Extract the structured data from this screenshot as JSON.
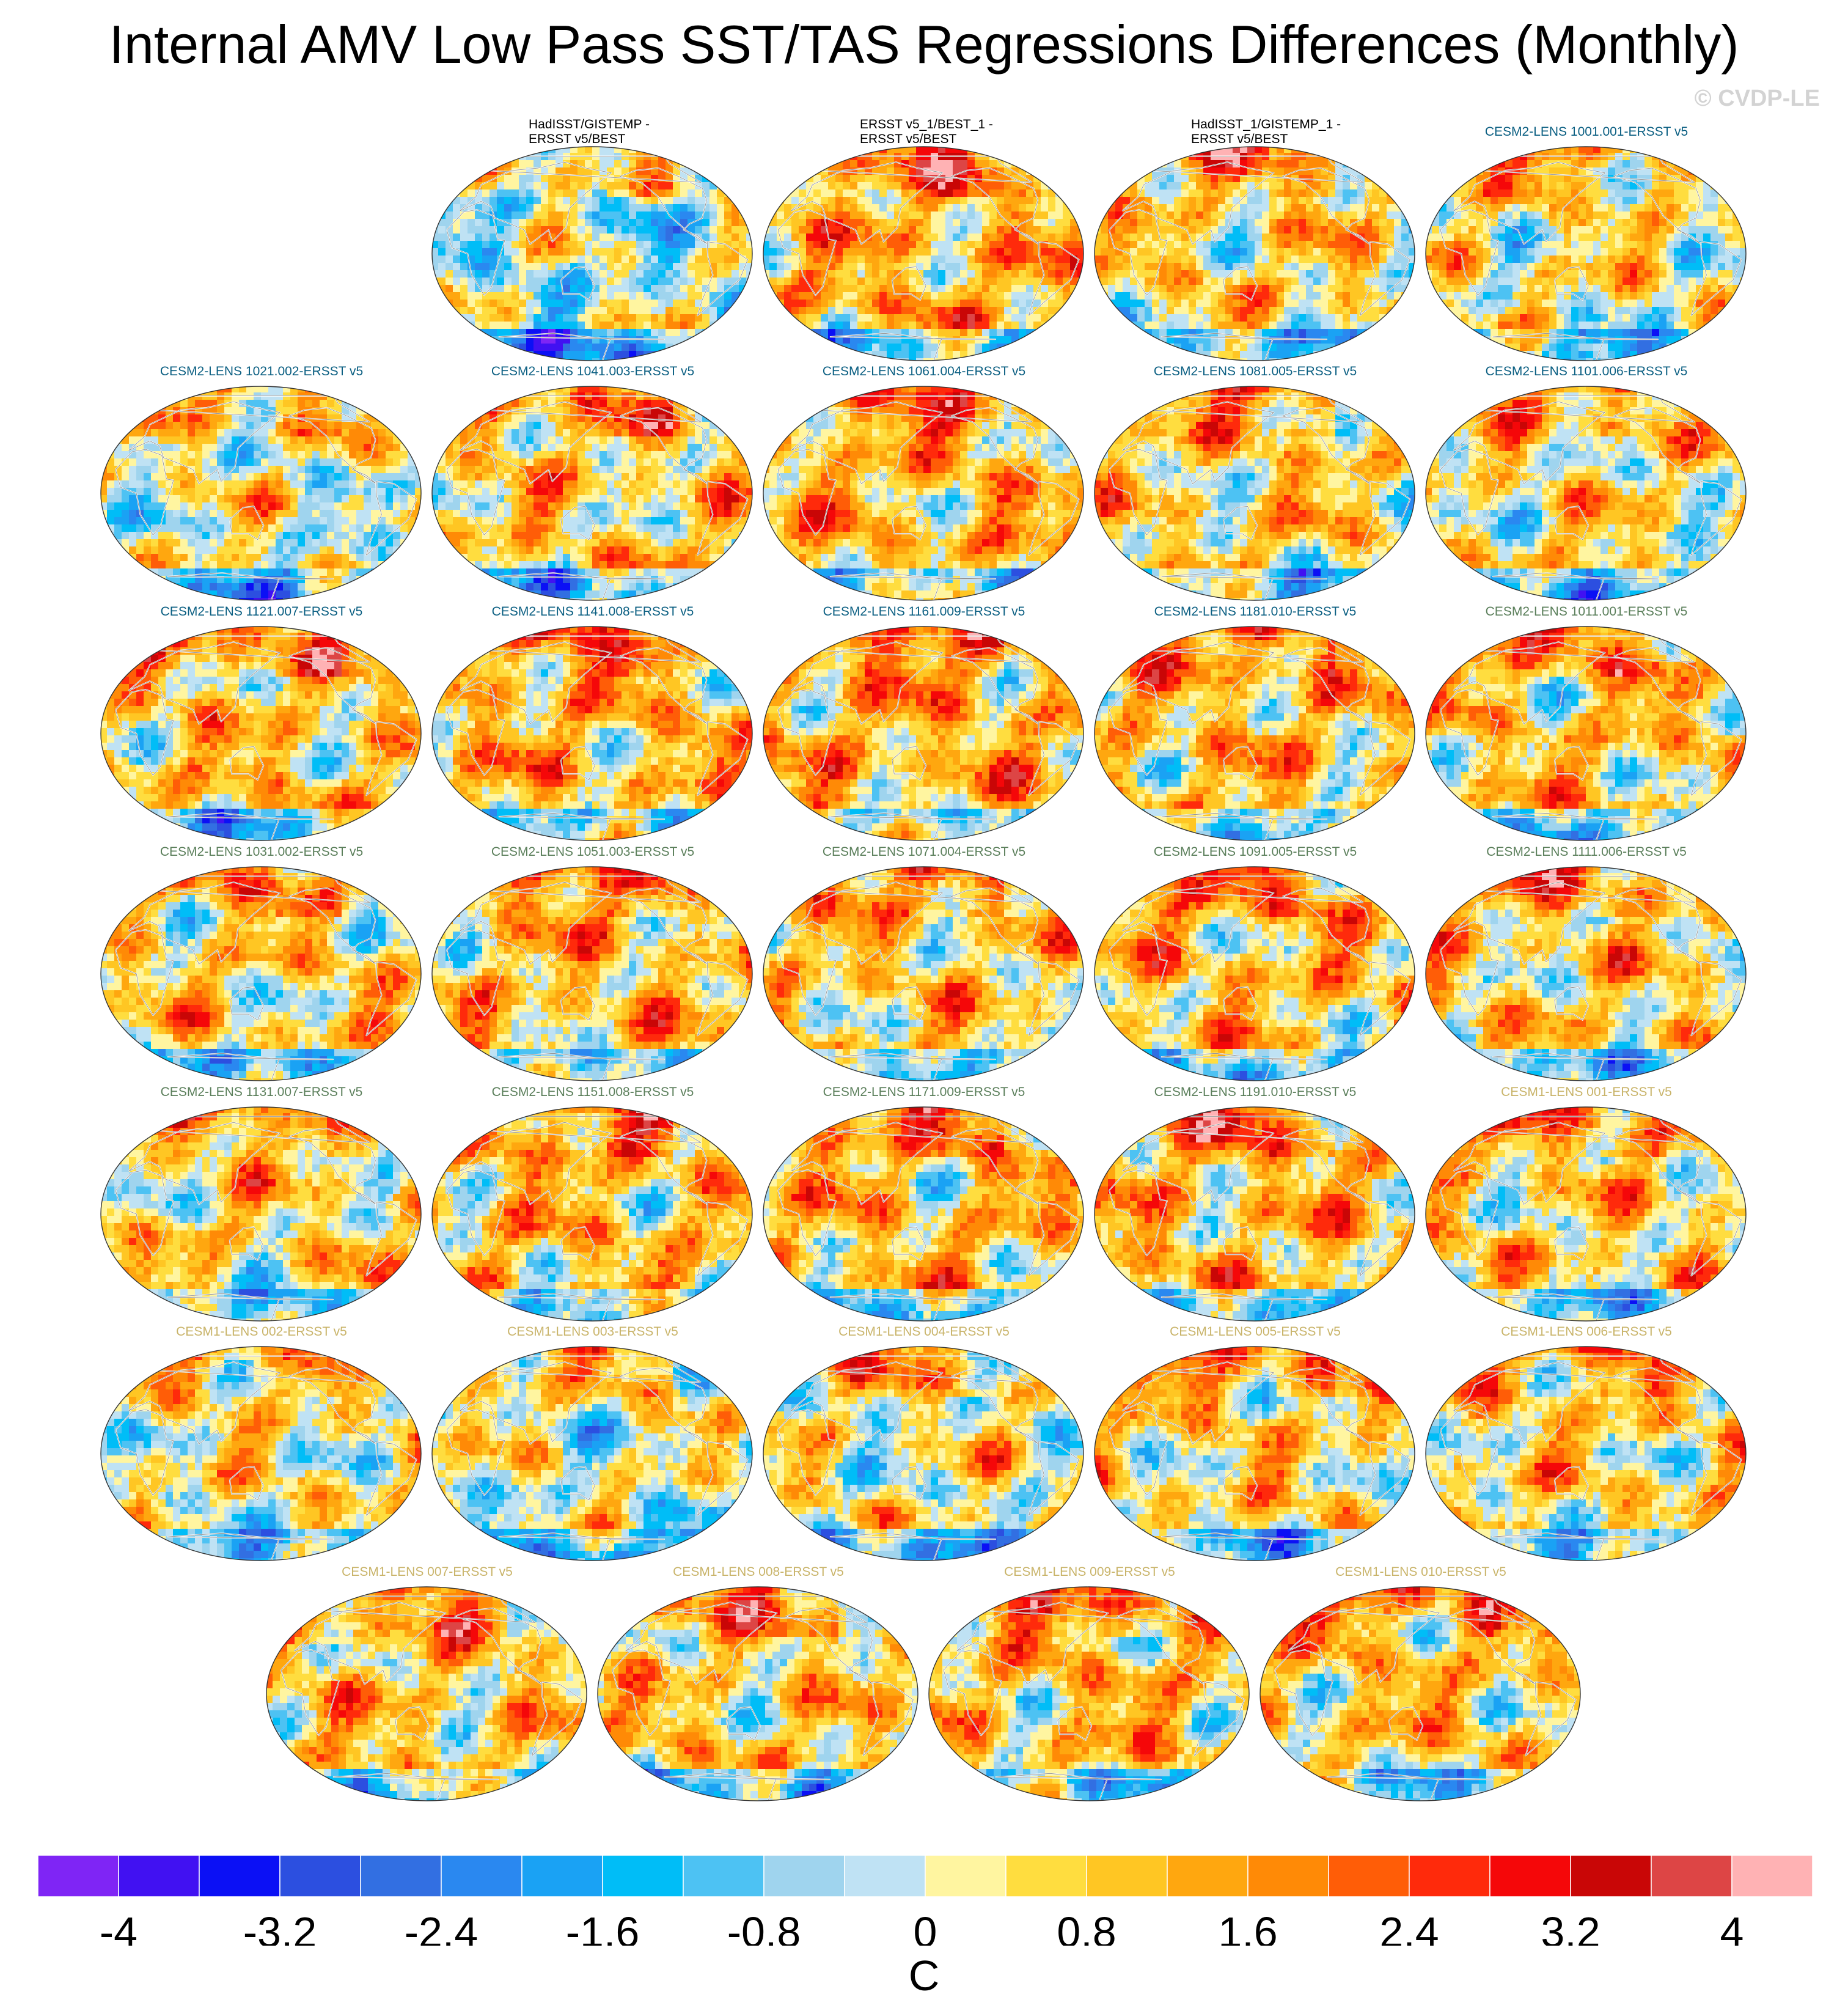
{
  "title": "Internal AMV Low Pass SST/TAS Regressions Differences (Monthly)",
  "copyright": "© CVDP-LE",
  "colors": {
    "obs_title": "#000000",
    "cesm2_a_title": "#0b5f82",
    "cesm2_b_title": "#5b7f5b",
    "cesm1_title": "#c9b46a"
  },
  "chart_data": {
    "type": "heatmap",
    "projection": "robinson-like global maps",
    "colorbar": {
      "unit": "C",
      "min": -4.4,
      "max": 4.4,
      "step": 0.4,
      "tick_labels": [
        "-4",
        "-3.2",
        "-2.4",
        "-1.6",
        "-0.8",
        "0",
        "0.8",
        "1.6",
        "2.4",
        "3.2",
        "4"
      ],
      "tick_values": [
        -4,
        -3.2,
        -2.4,
        -1.6,
        -0.8,
        0,
        0.8,
        1.6,
        2.4,
        3.2,
        4
      ],
      "colors": [
        "#7f25f5",
        "#4111f2",
        "#0b10f5",
        "#2c4fe0",
        "#326fe2",
        "#2a88f0",
        "#1aa2f4",
        "#00bdf7",
        "#4dc2f3",
        "#9fd4ee",
        "#bfe2f4",
        "#fff5a0",
        "#ffdd3f",
        "#ffc623",
        "#ffa70f",
        "#ff8a06",
        "#ff5d07",
        "#ff2a0b",
        "#f50709",
        "#c90606",
        "#dd4545",
        "#ffb2b4"
      ]
    },
    "panels": [
      {
        "title": "HadISST/GISTEMP -\nERSST v5/BEST",
        "group": "obs",
        "bias": -0.25,
        "seed": 11
      },
      {
        "title": "ERSST v5_1/BEST_1 -\nERSST v5/BEST",
        "group": "obs",
        "bias": 1.1,
        "seed": 12
      },
      {
        "title": "HadISST_1/GISTEMP_1 -\nERSST v5/BEST",
        "group": "obs",
        "bias": 0.6,
        "seed": 13
      },
      {
        "title": "CESM2-LENS 1001.001-ERSST v5",
        "group": "cesm2_a",
        "bias": 0.4,
        "seed": 14
      },
      {
        "title": "CESM2-LENS 1021.002-ERSST v5",
        "group": "cesm2_a",
        "bias": 0.2,
        "seed": 15
      },
      {
        "title": "CESM2-LENS 1041.003-ERSST v5",
        "group": "cesm2_a",
        "bias": 0.7,
        "seed": 16
      },
      {
        "title": "CESM2-LENS 1061.004-ERSST v5",
        "group": "cesm2_a",
        "bias": 1.0,
        "seed": 17
      },
      {
        "title": "CESM2-LENS 1081.005-ERSST v5",
        "group": "cesm2_a",
        "bias": 0.6,
        "seed": 18
      },
      {
        "title": "CESM2-LENS 1101.006-ERSST v5",
        "group": "cesm2_a",
        "bias": 0.5,
        "seed": 19
      },
      {
        "title": "CESM2-LENS 1121.007-ERSST v5",
        "group": "cesm2_a",
        "bias": 0.8,
        "seed": 20
      },
      {
        "title": "CESM2-LENS 1141.008-ERSST v5",
        "group": "cesm2_a",
        "bias": 1.0,
        "seed": 21
      },
      {
        "title": "CESM2-LENS 1161.009-ERSST v5",
        "group": "cesm2_a",
        "bias": 1.1,
        "seed": 22
      },
      {
        "title": "CESM2-LENS 1181.010-ERSST v5",
        "group": "cesm2_a",
        "bias": 0.9,
        "seed": 23
      },
      {
        "title": "CESM2-LENS 1011.001-ERSST v5",
        "group": "cesm2_b",
        "bias": 0.8,
        "seed": 24
      },
      {
        "title": "CESM2-LENS 1031.002-ERSST v5",
        "group": "cesm2_b",
        "bias": 0.6,
        "seed": 25
      },
      {
        "title": "CESM2-LENS 1051.003-ERSST v5",
        "group": "cesm2_b",
        "bias": 0.9,
        "seed": 26
      },
      {
        "title": "CESM2-LENS 1071.004-ERSST v5",
        "group": "cesm2_b",
        "bias": 0.7,
        "seed": 27
      },
      {
        "title": "CESM2-LENS 1091.005-ERSST v5",
        "group": "cesm2_b",
        "bias": 0.9,
        "seed": 28
      },
      {
        "title": "CESM2-LENS 1111.006-ERSST v5",
        "group": "cesm2_b",
        "bias": 0.7,
        "seed": 29
      },
      {
        "title": "CESM2-LENS 1131.007-ERSST v5",
        "group": "cesm2_b",
        "bias": 0.6,
        "seed": 30
      },
      {
        "title": "CESM2-LENS 1151.008-ERSST v5",
        "group": "cesm2_b",
        "bias": 0.9,
        "seed": 31
      },
      {
        "title": "CESM2-LENS 1171.009-ERSST v5",
        "group": "cesm2_b",
        "bias": 0.9,
        "seed": 32
      },
      {
        "title": "CESM2-LENS 1191.010-ERSST v5",
        "group": "cesm2_b",
        "bias": 1.0,
        "seed": 33
      },
      {
        "title": "CESM1-LENS 001-ERSST v5",
        "group": "cesm1",
        "bias": 0.7,
        "seed": 34
      },
      {
        "title": "CESM1-LENS 002-ERSST v5",
        "group": "cesm1",
        "bias": 0.4,
        "seed": 35
      },
      {
        "title": "CESM1-LENS 003-ERSST v5",
        "group": "cesm1",
        "bias": 0.1,
        "seed": 36
      },
      {
        "title": "CESM1-LENS 004-ERSST v5",
        "group": "cesm1",
        "bias": 0.3,
        "seed": 37
      },
      {
        "title": "CESM1-LENS 005-ERSST v5",
        "group": "cesm1",
        "bias": 0.6,
        "seed": 38
      },
      {
        "title": "CESM1-LENS 006-ERSST v5",
        "group": "cesm1",
        "bias": 0.6,
        "seed": 39
      },
      {
        "title": "CESM1-LENS 007-ERSST v5",
        "group": "cesm1",
        "bias": 0.8,
        "seed": 40
      },
      {
        "title": "CESM1-LENS 008-ERSST v5",
        "group": "cesm1",
        "bias": 0.7,
        "seed": 41
      },
      {
        "title": "CESM1-LENS 009-ERSST v5",
        "group": "cesm1",
        "bias": 0.9,
        "seed": 42
      },
      {
        "title": "CESM1-LENS 010-ERSST v5",
        "group": "cesm1",
        "bias": 0.8,
        "seed": 43
      }
    ]
  }
}
